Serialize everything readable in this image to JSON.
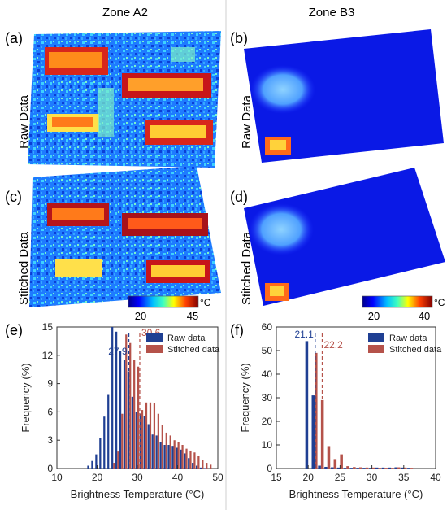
{
  "columns": {
    "left": "Zone A2",
    "right": "Zone B3"
  },
  "panels": {
    "a": {
      "letter": "(a)",
      "row_label": "Raw Data"
    },
    "b": {
      "letter": "(b)",
      "row_label": "Raw Data"
    },
    "c": {
      "letter": "(c)",
      "row_label": "Stitched Data"
    },
    "d": {
      "letter": "(d)",
      "row_label": "Stitched Data"
    },
    "e": {
      "letter": "(e)"
    },
    "f": {
      "letter": "(f)"
    }
  },
  "colorbars": {
    "left": {
      "min": "20",
      "max": "45",
      "unit": "°C"
    },
    "right": {
      "min": "20",
      "max": "40",
      "unit": "°C"
    }
  },
  "colors": {
    "raw": "#1f3f93",
    "stitched": "#b5524a",
    "raw_vline": "#1f3f93",
    "stitched_vline": "#b5524a"
  },
  "chart_data": [
    {
      "type": "bar",
      "panel": "(e)",
      "xlabel": "Brightness Temperature (°C)",
      "ylabel": "Frequency (%)",
      "xlim": [
        10,
        50
      ],
      "ylim": [
        0,
        15
      ],
      "xticks": [
        10,
        20,
        30,
        40,
        50
      ],
      "yticks": [
        0,
        3,
        6,
        9,
        12,
        15
      ],
      "legend_position": "top-right",
      "bin_width": 1,
      "series": [
        {
          "name": "Raw data",
          "x": [
            18,
            19,
            20,
            21,
            22,
            23,
            24,
            25,
            26,
            27,
            28,
            29,
            30,
            31,
            32,
            33,
            34,
            35,
            36,
            37,
            38,
            39,
            40,
            41,
            42,
            43,
            44,
            45,
            46,
            47
          ],
          "values": [
            0.3,
            0.8,
            1.5,
            3.2,
            5.5,
            7.8,
            15.2,
            14.5,
            12.5,
            11.5,
            10.3,
            7.6,
            6.0,
            5.8,
            5.6,
            4.7,
            3.6,
            3.5,
            2.8,
            2.5,
            2.5,
            2.4,
            2.2,
            2.0,
            1.6,
            1.1,
            0.6,
            0.3,
            0.1,
            0.05
          ]
        },
        {
          "name": "Stitched data",
          "x": [
            24,
            25,
            26,
            27,
            28,
            29,
            30,
            31,
            32,
            33,
            34,
            35,
            36,
            37,
            38,
            39,
            40,
            41,
            42,
            43,
            44,
            45,
            46,
            47,
            48
          ],
          "values": [
            0.6,
            1.8,
            5.8,
            14.2,
            13.3,
            11.5,
            10.8,
            6.2,
            7.0,
            7.0,
            6.9,
            5.8,
            4.6,
            3.8,
            3.5,
            3.0,
            2.8,
            2.5,
            2.1,
            1.9,
            1.7,
            1.3,
            0.9,
            0.6,
            0.4
          ]
        }
      ],
      "annotations": [
        {
          "label": "27.9",
          "x": 27.9,
          "series": "Raw data"
        },
        {
          "label": "30.6",
          "x": 30.6,
          "series": "Stitched data"
        }
      ]
    },
    {
      "type": "bar",
      "panel": "(f)",
      "xlabel": "Brightness Temperature (°C)",
      "ylabel": "Frequency (%)",
      "xlim": [
        15,
        40
      ],
      "ylim": [
        0,
        60
      ],
      "xticks": [
        15,
        20,
        25,
        30,
        35,
        40
      ],
      "yticks": [
        0,
        10,
        20,
        30,
        40,
        50,
        60
      ],
      "legend_position": "top-right",
      "bin_width": 1,
      "series": [
        {
          "name": "Raw data",
          "x": [
            20,
            21,
            22,
            23,
            24,
            25,
            26,
            27,
            28,
            29,
            30,
            31,
            32,
            33,
            34,
            35,
            36
          ],
          "values": [
            54,
            31,
            1.2,
            0.7,
            0.5,
            0.4,
            0.3,
            0.3,
            0.3,
            0.3,
            0.3,
            0.4,
            0.4,
            0.4,
            0.5,
            0.4,
            0.3
          ]
        },
        {
          "name": "Stitched data",
          "x": [
            20,
            21,
            22,
            23,
            24,
            25,
            26,
            27,
            28,
            29,
            30,
            31,
            32,
            33,
            34,
            35,
            36
          ],
          "values": [
            0,
            49,
            29,
            9.5,
            4,
            6,
            1,
            0.6,
            0.5,
            0.4,
            0.4,
            0.3,
            0.3,
            0.3,
            0.5,
            0.4,
            0.3
          ]
        }
      ],
      "annotations": [
        {
          "label": "21.1",
          "x": 21.1,
          "series": "Raw data"
        },
        {
          "label": "22.2",
          "x": 22.2,
          "series": "Stitched data"
        }
      ]
    }
  ]
}
